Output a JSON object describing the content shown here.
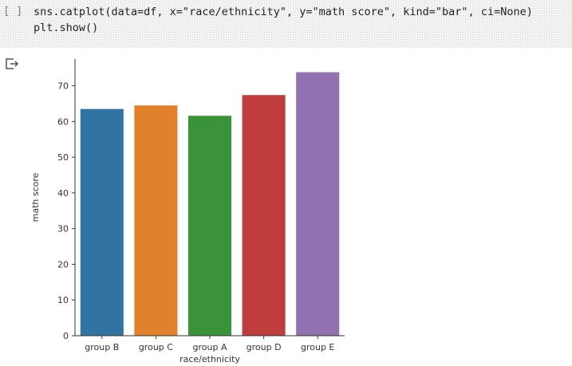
{
  "cell": {
    "run_indicator": "[ ]",
    "code_lines": [
      "sns.catplot(data=df, x=\"race/ethnicity\", y=\"math score\", kind=\"bar\", ci=None)",
      "plt.show()"
    ]
  },
  "output": {
    "icon": "output-arrow-icon"
  },
  "chart_data": {
    "type": "bar",
    "categories": [
      "group B",
      "group C",
      "group A",
      "group D",
      "group E"
    ],
    "values": [
      63.5,
      64.5,
      61.6,
      67.4,
      73.8
    ],
    "xlabel": "race/ethnicity",
    "ylabel": "math score",
    "ylim": [
      0,
      77.5
    ],
    "yticks": [
      0,
      10,
      20,
      30,
      40,
      50,
      60,
      70
    ],
    "grid": false,
    "colors": [
      "#3274a1",
      "#e1812c",
      "#3a923a",
      "#c03d3e",
      "#9372b2"
    ]
  }
}
